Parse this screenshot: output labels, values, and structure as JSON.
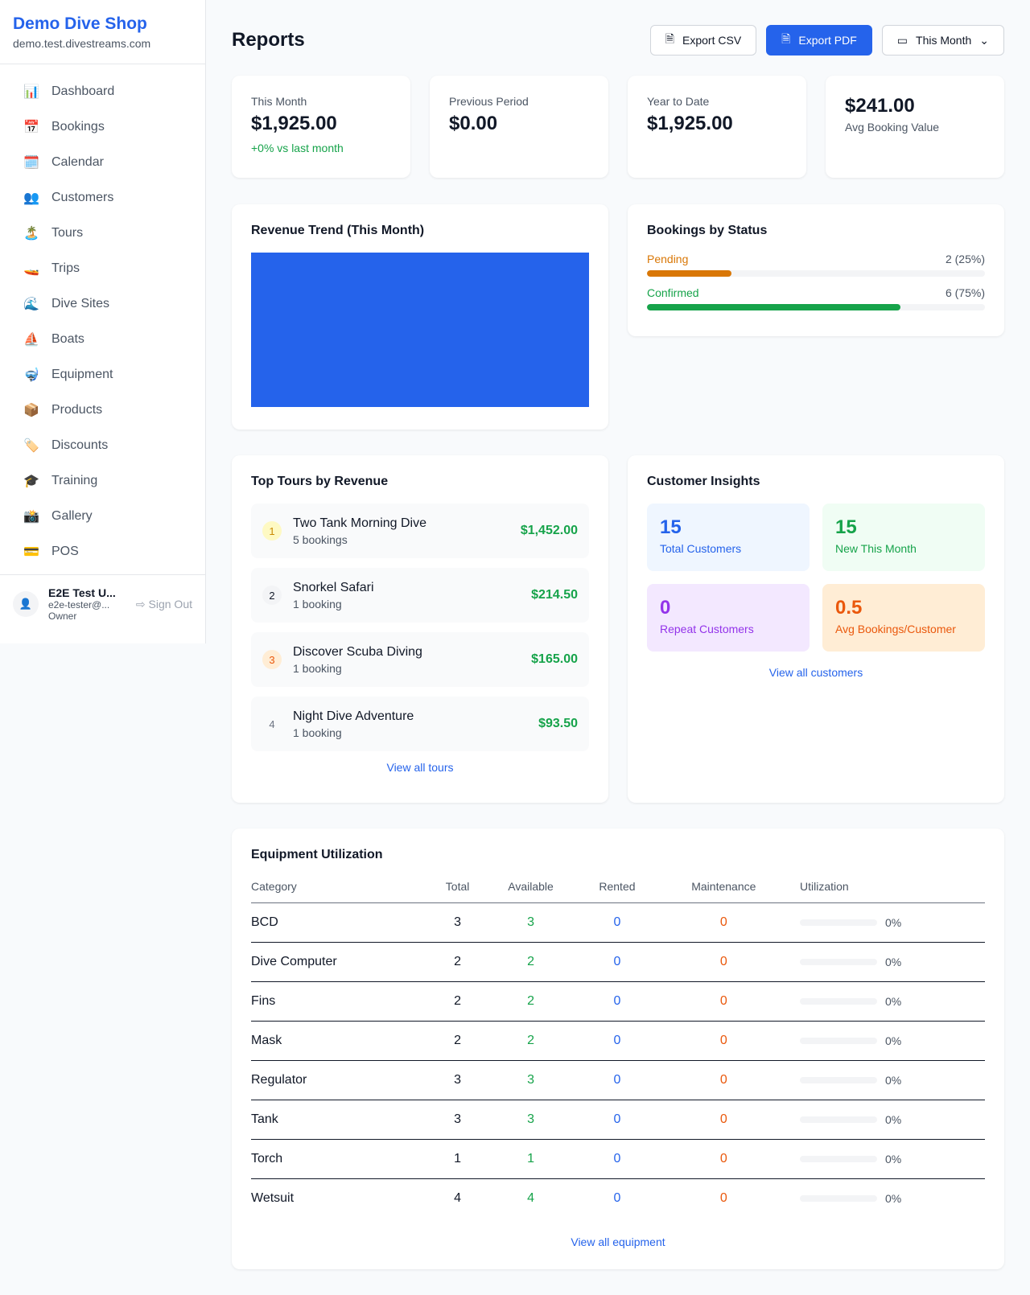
{
  "sidebar": {
    "brand": "Demo Dive Shop",
    "url": "demo.test.divestreams.com",
    "items": [
      {
        "icon": "📊",
        "label": "Dashboard"
      },
      {
        "icon": "📅",
        "label": "Bookings"
      },
      {
        "icon": "🗓️",
        "label": "Calendar"
      },
      {
        "icon": "👥",
        "label": "Customers"
      },
      {
        "icon": "🏝️",
        "label": "Tours"
      },
      {
        "icon": "🚤",
        "label": "Trips"
      },
      {
        "icon": "🌊",
        "label": "Dive Sites"
      },
      {
        "icon": "⛵",
        "label": "Boats"
      },
      {
        "icon": "🤿",
        "label": "Equipment"
      },
      {
        "icon": "📦",
        "label": "Products"
      },
      {
        "icon": "🏷️",
        "label": "Discounts"
      },
      {
        "icon": "🎓",
        "label": "Training"
      },
      {
        "icon": "📸",
        "label": "Gallery"
      },
      {
        "icon": "💳",
        "label": "POS"
      }
    ],
    "user": {
      "name": "E2E Test U...",
      "email": "e2e-tester@...",
      "role": "Owner",
      "sign_out": "Sign Out"
    }
  },
  "header": {
    "title": "Reports",
    "export_csv": "Export CSV",
    "export_pdf": "Export PDF",
    "period": "This Month"
  },
  "stats": [
    {
      "label": "This Month",
      "value": "$1,925.00",
      "sub": "+0% vs last month"
    },
    {
      "label": "Previous Period",
      "value": "$0.00"
    },
    {
      "label": "Year to Date",
      "value": "$1,925.00"
    },
    {
      "value": "$241.00",
      "label": "Avg Booking Value"
    }
  ],
  "revenue": {
    "title": "Revenue Trend (This Month)",
    "color": "#2563eb"
  },
  "status": {
    "title": "Bookings by Status",
    "items": [
      {
        "label": "Pending",
        "value": "2 (25%)",
        "percent": 25,
        "color": "#d97706"
      },
      {
        "label": "Confirmed",
        "value": "6 (75%)",
        "percent": 75,
        "color": "#16a34a"
      }
    ]
  },
  "tours": {
    "title": "Top Tours by Revenue",
    "items": [
      {
        "rank": "1",
        "name": "Two Tank Morning Dive",
        "count": "5 bookings",
        "amount": "$1,452.00"
      },
      {
        "rank": "2",
        "name": "Snorkel Safari",
        "count": "1 booking",
        "amount": "$214.50"
      },
      {
        "rank": "3",
        "name": "Discover Scuba Diving",
        "count": "1 booking",
        "amount": "$165.00"
      },
      {
        "rank": "4",
        "name": "Night Dive Adventure",
        "count": "1 booking",
        "amount": "$93.50"
      }
    ],
    "link": "View all tours"
  },
  "insights": {
    "title": "Customer Insights",
    "items": [
      {
        "value": "15",
        "label": "Total Customers"
      },
      {
        "value": "15",
        "label": "New This Month"
      },
      {
        "value": "0",
        "label": "Repeat Customers"
      },
      {
        "value": "0.5",
        "label": "Avg Bookings/Customer"
      }
    ],
    "link": "View all customers"
  },
  "equipment": {
    "title": "Equipment Utilization",
    "columns": [
      "Category",
      "Total",
      "Available",
      "Rented",
      "Maintenance",
      "Utilization"
    ],
    "rows": [
      [
        "BCD",
        "3",
        "3",
        "0",
        "0",
        "0%"
      ],
      [
        "Dive Computer",
        "2",
        "2",
        "0",
        "0",
        "0%"
      ],
      [
        "Fins",
        "2",
        "2",
        "0",
        "0",
        "0%"
      ],
      [
        "Mask",
        "2",
        "2",
        "0",
        "0",
        "0%"
      ],
      [
        "Regulator",
        "3",
        "3",
        "0",
        "0",
        "0%"
      ],
      [
        "Tank",
        "3",
        "3",
        "0",
        "0",
        "0%"
      ],
      [
        "Torch",
        "1",
        "1",
        "0",
        "0",
        "0%"
      ],
      [
        "Wetsuit",
        "4",
        "4",
        "0",
        "0",
        "0%"
      ]
    ],
    "link": "View all equipment"
  }
}
